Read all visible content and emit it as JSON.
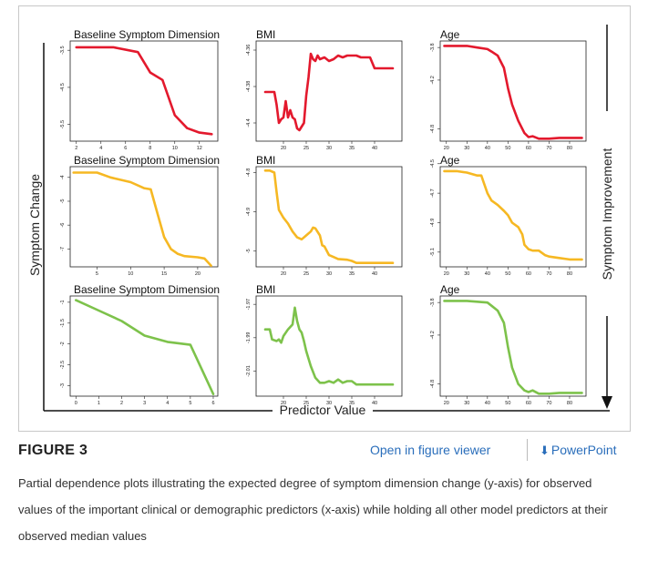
{
  "figure": {
    "label": "FIGURE 3",
    "open_viewer_label": "Open in figure viewer",
    "powerpoint_label": "PowerPoint",
    "powerpoint_icon": "download-icon",
    "caption": "Partial dependence plots illustrating the expected degree of symptom dimension change (y-axis) for observed values of the important clinical or demographic predictors (x-axis) while holding all other model predictors at their observed median values",
    "y_axis_label": "Symptom Change",
    "x_axis_label": "Predictor Value",
    "right_axis_label": "Symptom Improvement",
    "colors": {
      "row1": "#e3192d",
      "row2": "#f6b823",
      "row3": "#7dc24b"
    }
  },
  "chart_data": [
    {
      "type": "line",
      "title": "Baseline Symptom Dimension",
      "color": "#e3192d",
      "xlim": [
        1.5,
        13.5
      ],
      "ylim": [
        -5.95,
        -3.25
      ],
      "xticks": [
        2,
        4,
        6,
        8,
        10,
        12
      ],
      "yticks": [
        -3.5,
        -4.5,
        -5.5
      ],
      "x": [
        2,
        5,
        7,
        8,
        9,
        10,
        11,
        12,
        13
      ],
      "y": [
        -3.42,
        -3.42,
        -3.55,
        -4.1,
        -4.3,
        -5.25,
        -5.6,
        -5.72,
        -5.76
      ]
    },
    {
      "type": "line",
      "title": "BMI",
      "color": "#e3192d",
      "xlim": [
        14,
        46
      ],
      "ylim": [
        -4.41,
        -4.355
      ],
      "xticks": [
        20,
        25,
        30,
        35,
        40
      ],
      "yticks": [
        -4.36,
        -4.38,
        -4.4
      ],
      "x": [
        16,
        17,
        18,
        18.5,
        19,
        19.5,
        20,
        20.5,
        21,
        21.5,
        22,
        22.5,
        23,
        23.5,
        24,
        24.5,
        25,
        25.5,
        26,
        26.5,
        27,
        27.5,
        28,
        29,
        30,
        31,
        32,
        33,
        34,
        35,
        36,
        37,
        38,
        39,
        40,
        41,
        42,
        43,
        44
      ],
      "y": [
        -4.383,
        -4.383,
        -4.383,
        -4.39,
        -4.4,
        -4.398,
        -4.397,
        -4.388,
        -4.397,
        -4.393,
        -4.397,
        -4.398,
        -4.403,
        -4.404,
        -4.402,
        -4.4,
        -4.385,
        -4.375,
        -4.362,
        -4.365,
        -4.366,
        -4.363,
        -4.365,
        -4.364,
        -4.366,
        -4.365,
        -4.363,
        -4.364,
        -4.363,
        -4.363,
        -4.363,
        -4.364,
        -4.364,
        -4.364,
        -4.37,
        -4.37,
        -4.37,
        -4.37,
        -4.37
      ]
    },
    {
      "type": "line",
      "title": "Age",
      "color": "#e3192d",
      "xlim": [
        17,
        88
      ],
      "ylim": [
        -4.95,
        -3.72
      ],
      "xticks": [
        20,
        30,
        40,
        50,
        60,
        70,
        80
      ],
      "yticks": [
        -3.8,
        -4.2,
        -4.8
      ],
      "x": [
        19,
        30,
        35,
        40,
        42,
        45,
        48,
        50,
        52,
        55,
        58,
        60,
        62,
        65,
        70,
        75,
        80,
        86
      ],
      "y": [
        -3.78,
        -3.78,
        -3.8,
        -3.82,
        -3.85,
        -3.9,
        -4.05,
        -4.3,
        -4.5,
        -4.7,
        -4.85,
        -4.9,
        -4.89,
        -4.92,
        -4.92,
        -4.91,
        -4.91,
        -4.91
      ]
    },
    {
      "type": "line",
      "title": "Baseline Symptom Dimension",
      "color": "#f6b823",
      "xlim": [
        1,
        23
      ],
      "ylim": [
        -7.75,
        -3.55
      ],
      "xticks": [
        5,
        10,
        15,
        20
      ],
      "yticks": [
        -4,
        -5,
        -6,
        -7
      ],
      "x": [
        1.5,
        5,
        7,
        10,
        12,
        13,
        14,
        15,
        16,
        17,
        18,
        20,
        21,
        22
      ],
      "y": [
        -3.8,
        -3.8,
        -4,
        -4.2,
        -4.45,
        -4.5,
        -5.5,
        -6.5,
        -7,
        -7.2,
        -7.3,
        -7.35,
        -7.4,
        -7.7
      ]
    },
    {
      "type": "line",
      "title": "BMI",
      "color": "#f6b823",
      "xlim": [
        14,
        46
      ],
      "ylim": [
        -5.04,
        -4.785
      ],
      "xticks": [
        20,
        25,
        30,
        35,
        40
      ],
      "yticks": [
        -4.8,
        -4.9,
        -5.0
      ],
      "x": [
        16,
        17,
        18,
        18.5,
        19,
        20,
        21,
        22,
        23,
        24,
        25,
        26,
        26.5,
        27,
        28,
        28.5,
        29,
        30,
        31,
        32,
        34,
        35,
        36,
        38,
        40,
        42,
        44
      ],
      "y": [
        -4.795,
        -4.795,
        -4.8,
        -4.85,
        -4.895,
        -4.915,
        -4.93,
        -4.95,
        -4.965,
        -4.97,
        -4.96,
        -4.95,
        -4.94,
        -4.942,
        -4.96,
        -4.985,
        -4.988,
        -5.01,
        -5.015,
        -5.02,
        -5.022,
        -5.025,
        -5.03,
        -5.03,
        -5.03,
        -5.03,
        -5.03
      ]
    },
    {
      "type": "line",
      "title": "Age",
      "color": "#f6b823",
      "xlim": [
        17,
        88
      ],
      "ylim": [
        -5.2,
        -4.52
      ],
      "xticks": [
        20,
        30,
        40,
        50,
        60,
        70,
        80
      ],
      "yticks": [
        -4.5,
        -4.7,
        -4.9,
        -5.1
      ],
      "x": [
        19,
        25,
        30,
        35,
        37,
        38,
        40,
        42,
        45,
        48,
        50,
        52,
        55,
        57,
        58,
        60,
        62,
        65,
        68,
        70,
        75,
        80,
        86
      ],
      "y": [
        -4.55,
        -4.55,
        -4.56,
        -4.58,
        -4.58,
        -4.62,
        -4.7,
        -4.75,
        -4.78,
        -4.82,
        -4.85,
        -4.9,
        -4.93,
        -4.98,
        -5.05,
        -5.08,
        -5.09,
        -5.09,
        -5.12,
        -5.13,
        -5.14,
        -5.15,
        -5.15
      ]
    },
    {
      "type": "line",
      "title": "Baseline Symptom Dimension",
      "color": "#7dc24b",
      "xlim": [
        -0.25,
        6.2
      ],
      "ylim": [
        -3.25,
        -0.85
      ],
      "xticks": [
        0,
        1,
        2,
        3,
        4,
        5,
        6
      ],
      "yticks": [
        -1.0,
        -1.5,
        -2.0,
        -2.5,
        -3.0
      ],
      "x": [
        0,
        1,
        2,
        3,
        4,
        5,
        6
      ],
      "y": [
        -0.95,
        -1.2,
        -1.45,
        -1.8,
        -1.95,
        -2.02,
        -3.2
      ]
    },
    {
      "type": "line",
      "title": "BMI",
      "color": "#7dc24b",
      "xlim": [
        14,
        46
      ],
      "ylim": [
        -2.025,
        -1.965
      ],
      "xticks": [
        20,
        25,
        30,
        35,
        40
      ],
      "yticks": [
        -1.97,
        -1.99,
        -2.01
      ],
      "x": [
        16,
        17,
        17.5,
        18.5,
        19,
        19.5,
        20,
        21,
        22,
        22.5,
        23,
        23.5,
        24,
        24.5,
        25,
        26,
        27,
        28,
        29,
        30,
        31,
        32,
        33,
        34,
        35,
        36,
        38,
        40,
        44
      ],
      "y": [
        -1.985,
        -1.985,
        -1.991,
        -1.992,
        -1.991,
        -1.993,
        -1.989,
        -1.985,
        -1.982,
        -1.972,
        -1.98,
        -1.985,
        -1.987,
        -1.992,
        -1.998,
        -2.007,
        -2.014,
        -2.017,
        -2.017,
        -2.016,
        -2.017,
        -2.015,
        -2.017,
        -2.016,
        -2.016,
        -2.018,
        -2.018,
        -2.018,
        -2.018
      ]
    },
    {
      "type": "line",
      "title": "Age",
      "color": "#7dc24b",
      "xlim": [
        17,
        88
      ],
      "ylim": [
        -4.95,
        -3.72
      ],
      "xticks": [
        20,
        30,
        40,
        50,
        60,
        70,
        80
      ],
      "yticks": [
        -3.8,
        -4.2,
        -4.8
      ],
      "x": [
        19,
        30,
        35,
        40,
        42,
        45,
        48,
        50,
        52,
        55,
        58,
        60,
        62,
        65,
        70,
        75,
        80,
        86
      ],
      "y": [
        -3.78,
        -3.78,
        -3.79,
        -3.8,
        -3.84,
        -3.9,
        -4.05,
        -4.35,
        -4.6,
        -4.8,
        -4.88,
        -4.9,
        -4.88,
        -4.92,
        -4.92,
        -4.91,
        -4.91,
        -4.91
      ]
    }
  ]
}
